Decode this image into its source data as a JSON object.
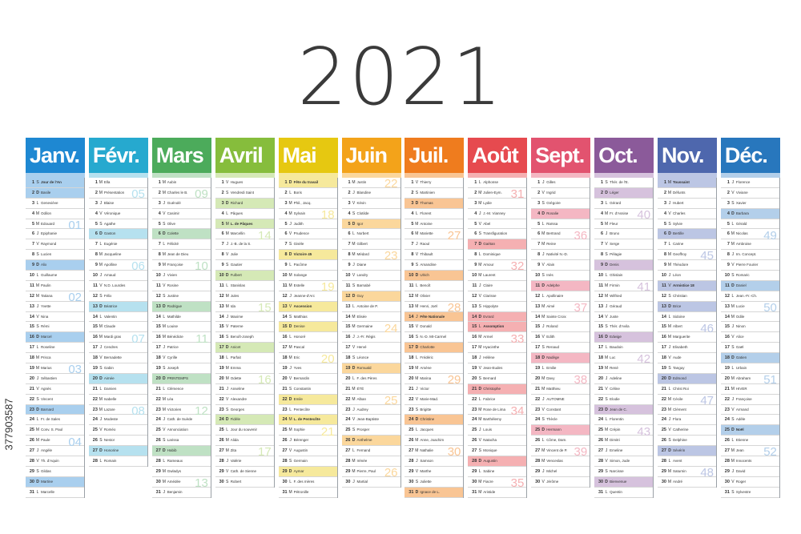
{
  "title": "2021",
  "side_text": "377903587",
  "months": [
    {
      "name": "Janv.",
      "color": "#1e88d2",
      "tint": "#a9cfee",
      "start": 5,
      "days": [
        "Jour de l'An",
        "Basile",
        "Geneviève",
        "Odilon",
        "Edouard",
        "Epiphanie",
        "Raymond",
        "Lucien",
        "Alix",
        "Guillaume",
        "Paulin",
        "Tatiana",
        "Yvette",
        "Nina",
        "Rémi",
        "Marcel",
        "Roseline",
        "Prisca",
        "Marius",
        "Sébastien",
        "Agnès",
        "Vincent",
        "Barnard",
        "Fr. de Sales",
        "Conv. S. Paul",
        "Paule",
        "Angèle",
        "Th. d'Aquin",
        "Gildas",
        "Martine",
        "Marcelle"
      ],
      "holidays": [
        1
      ],
      "weeks": [
        {
          "d": 5,
          "w": "01"
        },
        {
          "d": 12,
          "w": "02"
        },
        {
          "d": 19,
          "w": "03"
        },
        {
          "d": 26,
          "w": "04"
        }
      ]
    },
    {
      "name": "Févr.",
      "color": "#26a9cf",
      "tint": "#b6e1ef",
      "start": 1,
      "days": [
        "Ella",
        "Présentation",
        "Blaise",
        "Véronique",
        "Agathe",
        "Gaston",
        "Eugénie",
        "Jacqueline",
        "Apolline",
        "Arnaud",
        "N.D. Lourdes",
        "Félix",
        "Béatrice",
        "Valentin",
        "Claude",
        "Mardi gras",
        "Cendres",
        "Bernadette",
        "Gabin",
        "Aimée",
        "Damien",
        "Isabelle",
        "Lazare",
        "Modeste",
        "Roméo",
        "Nestor",
        "Honorine",
        "Romain"
      ],
      "holidays": [],
      "weeks": [
        {
          "d": 2,
          "w": "05"
        },
        {
          "d": 9,
          "w": "06"
        },
        {
          "d": 16,
          "w": "07"
        },
        {
          "d": 23,
          "w": "08"
        }
      ]
    },
    {
      "name": "Mars",
      "color": "#4cab5b",
      "tint": "#bfe1c4",
      "start": 1,
      "days": [
        "Aubin",
        "Charles le B.",
        "Guénolé",
        "Casimir",
        "Olive",
        "Colette",
        "Félicité",
        "Jean de Dieu",
        "Françoise",
        "Vivien",
        "Rosine",
        "Justine",
        "Rodrigue",
        "Mathilde",
        "Louise",
        "Bénédicte",
        "Patrice",
        "Cyrille",
        "Joseph",
        "PRINTEMPS",
        "Clémence",
        "Léa",
        "Victorien",
        "Cath. de Suède",
        "Annonciation",
        "Larissa",
        "Habib",
        "Rameaux",
        "Gwladys",
        "Amédée",
        "Benjamin"
      ],
      "holidays": [],
      "weeks": [
        {
          "d": 2,
          "w": "09"
        },
        {
          "d": 9,
          "w": "10"
        },
        {
          "d": 16,
          "w": "11"
        },
        {
          "d": 23,
          "w": "12"
        },
        {
          "d": 30,
          "w": "13"
        }
      ]
    },
    {
      "name": "Avril",
      "color": "#86bd3c",
      "tint": "#d5e9b6",
      "start": 4,
      "days": [
        "Hugues",
        "Vendredi Saint",
        "Richard",
        "Pâques",
        "L. de Pâques",
        "Marcellin",
        "J.-B. de la S.",
        "Julie",
        "Gautier",
        "Fulbert",
        "Stanislas",
        "Jules",
        "Ida",
        "Maxime",
        "Paterne",
        "Benoît-Joseph",
        "Anicet",
        "Parfait",
        "Emma",
        "Odette",
        "Anselme",
        "Alexandre",
        "Georges",
        "Fidèle",
        "Jour du souvenir",
        "Alida",
        "Zita",
        "Valérie",
        "Cath. de Sienne",
        "Robert"
      ],
      "holidays": [
        5
      ],
      "weeks": [
        {
          "d": 6,
          "w": "14"
        },
        {
          "d": 13,
          "w": "15"
        },
        {
          "d": 20,
          "w": "16"
        },
        {
          "d": 27,
          "w": "17"
        }
      ]
    },
    {
      "name": "Mai",
      "color": "#e6c811",
      "tint": "#f6e99c",
      "start": 6,
      "days": [
        "Fête du travail",
        "Boris",
        "Phil., Jacq.",
        "Sylvain",
        "Judith",
        "Prudence",
        "Gisèle",
        "Victoire 45",
        "Pacôme",
        "Solange",
        "Estelle",
        "Jeanne-d'Arc",
        "Ascension",
        "Matthias",
        "Denise",
        "Honoré",
        "Pascal",
        "Eric",
        "Yves",
        "Bernardin",
        "Constantin",
        "Emile",
        "Pentecôte",
        "L. de Pentecôte",
        "Sophie",
        "Bérenger",
        "Augustin",
        "Germain",
        "Aymar",
        "F. des mères",
        "Pétronille"
      ],
      "holidays": [
        1,
        8,
        13,
        24
      ],
      "weeks": [
        {
          "d": 4,
          "w": "18"
        },
        {
          "d": 11,
          "w": "19"
        },
        {
          "d": 18,
          "w": "20"
        },
        {
          "d": 25,
          "w": "21"
        }
      ]
    },
    {
      "name": "Juin",
      "color": "#f3a31a",
      "tint": "#fbd79c",
      "start": 2,
      "days": [
        "Justin",
        "Blandine",
        "Kévin",
        "Clotilde",
        "Igor",
        "Norbert",
        "Gilbert",
        "Médard",
        "Diane",
        "Landry",
        "Barnabé",
        "Guy",
        "Antoine de P.",
        "Elisée",
        "Germaine",
        "J.-Fr. Régis",
        "Hervé",
        "Léonce",
        "Romuald",
        "F. des Pères",
        "ÉTÉ",
        "Alban",
        "Audrey",
        "Jean-Baptiste",
        "Prosper",
        "Anthelme",
        "Fernand",
        "Irénée",
        "Pierre, Paul",
        "Martial"
      ],
      "holidays": [],
      "weeks": [
        {
          "d": 1,
          "w": "22"
        },
        {
          "d": 8,
          "w": "23"
        },
        {
          "d": 15,
          "w": "24"
        },
        {
          "d": 22,
          "w": "25"
        },
        {
          "d": 29,
          "w": "26"
        }
      ]
    },
    {
      "name": "Juil.",
      "color": "#ef7c1e",
      "tint": "#f9c594",
      "start": 4,
      "days": [
        "Thierry",
        "Martinien",
        "Thomas",
        "Florent",
        "Antoine",
        "Mariette",
        "Raoul",
        "Thibault",
        "Amandine",
        "Ulrich",
        "Benoît",
        "Olivier",
        "Henri, Joël",
        "Fête Nationale",
        "Donald",
        "N.-D. Mt-Carmel",
        "Charlotte",
        "Frédéric",
        "Arsène",
        "Marina",
        "Victor",
        "Marie-Mad.",
        "Brigitte",
        "Christine",
        "Jacques",
        "Anne, Joachim",
        "Nathalie",
        "Samson",
        "Marthe",
        "Juliette",
        "Ignace de L."
      ],
      "holidays": [
        14
      ],
      "weeks": [
        {
          "d": 6,
          "w": "27"
        },
        {
          "d": 13,
          "w": "28"
        },
        {
          "d": 20,
          "w": "29"
        },
        {
          "d": 27,
          "w": "30"
        }
      ]
    },
    {
      "name": "Août",
      "color": "#e64a4f",
      "tint": "#f5b0b2",
      "start": 7,
      "days": [
        "Alphonse",
        "Julien-Eym.",
        "Lydie",
        "J.-M. Vianney",
        "Abel",
        "Transfiguration",
        "Gaétan",
        "Dominique",
        "Amour",
        "Laurent",
        "Claire",
        "Clarisse",
        "Hippolyte",
        "Evrard",
        "Assomption",
        "Armel",
        "Hyacinthe",
        "Hélène",
        "Jean-Eudes",
        "Bernard",
        "Christophe",
        "Fabrice",
        "Rose de Lima",
        "Barthélemy",
        "Louis",
        "Natacha",
        "Monique",
        "Augustin",
        "Sabine",
        "Fiacre",
        "Aristide"
      ],
      "holidays": [
        15
      ],
      "weeks": [
        {
          "d": 2,
          "w": "31"
        },
        {
          "d": 9,
          "w": "32"
        },
        {
          "d": 16,
          "w": "33"
        },
        {
          "d": 23,
          "w": "34"
        },
        {
          "d": 30,
          "w": "35"
        }
      ]
    },
    {
      "name": "Sept.",
      "color": "#e2536f",
      "tint": "#f4b7c3",
      "start": 3,
      "days": [
        "Gilles",
        "Ingrid",
        "Grégoire",
        "Rosalie",
        "Raïssa",
        "Bertrand",
        "Reine",
        "Nativité N.-D.",
        "Alain",
        "Inès",
        "Adelphe",
        "Apollinaire",
        "Aimé",
        "Sainte Croix",
        "Roland",
        "Edith",
        "Renaud",
        "Nadège",
        "Emilie",
        "Davy",
        "Matthieu",
        "AUTOMNE",
        "Constant",
        "Thècle",
        "Hermann",
        "Côme, Dam.",
        "Vincent de P.",
        "Venceslas",
        "Michel",
        "Jérôme"
      ],
      "holidays": [],
      "weeks": [
        {
          "d": 6,
          "w": "36"
        },
        {
          "d": 13,
          "w": "37"
        },
        {
          "d": 20,
          "w": "38"
        },
        {
          "d": 27,
          "w": "39"
        }
      ]
    },
    {
      "name": "Oct.",
      "color": "#8b5a9a",
      "tint": "#d6c2dd",
      "start": 5,
      "days": [
        "Thér. de l'E.",
        "Léger",
        "Gérard",
        "Fr. d'Assise",
        "Fleur",
        "Bruno",
        "Serge",
        "Pélagie",
        "Denis",
        "Ghislain",
        "Firmin",
        "Wilfried",
        "Géraud",
        "Juste",
        "Thér. d'Avila",
        "Edwige",
        "Baudoin",
        "Luc",
        "René",
        "Adeline",
        "Céline",
        "Elodie",
        "Jean de C.",
        "Florentin",
        "Crépin",
        "Dimitri",
        "Emeline",
        "Simon, Jude",
        "Narcisse",
        "Bienvenue",
        "Quentin"
      ],
      "holidays": [],
      "weeks": [
        {
          "d": 4,
          "w": "40"
        },
        {
          "d": 11,
          "w": "41"
        },
        {
          "d": 18,
          "w": "42"
        },
        {
          "d": 25,
          "w": "43"
        }
      ]
    },
    {
      "name": "Nov.",
      "color": "#4e67ad",
      "tint": "#bcc6e4",
      "start": 1,
      "days": [
        "Toussaint",
        "Défunts",
        "Hubert",
        "Charles",
        "Sylvie",
        "Bertille",
        "Carine",
        "Geoffroy",
        "Théodore",
        "Léon",
        "Armistice 18",
        "Christian",
        "Brice",
        "Sidoine",
        "Albert",
        "Marguerite",
        "Elisabeth",
        "Aude",
        "Tanguy",
        "Edmond",
        "Christ Roi",
        "Cécile",
        "Clément",
        "Flora",
        "Catherine",
        "Delphine",
        "Sévérin",
        "Avent",
        "Saturnin",
        "André"
      ],
      "holidays": [
        1,
        11
      ],
      "weeks": [
        {
          "d": 1,
          "w": "44"
        },
        {
          "d": 8,
          "w": "45"
        },
        {
          "d": 15,
          "w": "46"
        },
        {
          "d": 22,
          "w": "47"
        },
        {
          "d": 29,
          "w": "48"
        }
      ]
    },
    {
      "name": "Déc.",
      "color": "#2877bd",
      "tint": "#b3cfea",
      "start": 3,
      "days": [
        "Florence",
        "Viviane",
        "Xavier",
        "Barbara",
        "Gérald",
        "Nicolas",
        "Ambroise",
        "Im. Concept.",
        "Pierre Fourier",
        "Romaric",
        "Daniel",
        "Jean.-Fr.-Ch.",
        "Lucie",
        "Odile",
        "Ninon",
        "Alice",
        "Gaël",
        "Gatien",
        "Urbain",
        "Abraham",
        "HIVER",
        "Françoise",
        "Armand",
        "Adèle",
        "Noël",
        "Etienne",
        "Jean",
        "Innocents",
        "David",
        "Roger",
        "Sylvestre"
      ],
      "holidays": [
        25
      ],
      "weeks": [
        {
          "d": 6,
          "w": "49"
        },
        {
          "d": 13,
          "w": "50"
        },
        {
          "d": 20,
          "w": "51"
        },
        {
          "d": 27,
          "w": "52"
        }
      ]
    }
  ],
  "day_letters": [
    "L",
    "M",
    "M",
    "J",
    "V",
    "S",
    "D"
  ]
}
